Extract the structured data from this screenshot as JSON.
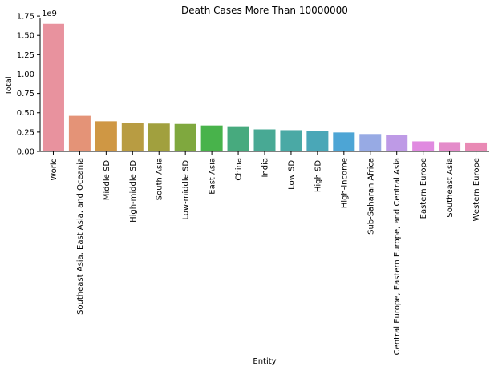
{
  "chart_data": {
    "type": "bar",
    "title": "Death Cases More Than 10000000",
    "xlabel": "Entity",
    "ylabel": "Total",
    "offset_label": "1e9",
    "ylim": [
      0,
      1.72
    ],
    "yticks": [
      0.0,
      0.25,
      0.5,
      0.75,
      1.0,
      1.25,
      1.5,
      1.75
    ],
    "ytick_labels": [
      "0.00",
      "0.25",
      "0.50",
      "0.75",
      "1.00",
      "1.25",
      "1.50",
      "1.75"
    ],
    "grid": false,
    "categories": [
      "World",
      "Southeast Asia, East Asia, and Oceania",
      "Middle SDI",
      "High-middle SDI",
      "South Asia",
      "Low-middle SDI",
      "East Asia",
      "China",
      "India",
      "Low SDI",
      "High SDI",
      "High-income",
      "Sub-Saharan Africa",
      "Central Europe, Eastern Europe, and Central Asia",
      "Eastern Europe",
      "Southeast Asia",
      "Western Europe"
    ],
    "values": [
      1.65,
      0.46,
      0.39,
      0.37,
      0.36,
      0.355,
      0.335,
      0.325,
      0.285,
      0.275,
      0.265,
      0.245,
      0.225,
      0.21,
      0.13,
      0.12,
      0.115
    ],
    "colors": [
      "#e8929e",
      "#e49377",
      "#cf9744",
      "#b89c42",
      "#a1a03e",
      "#7fa83e",
      "#48b34b",
      "#47aa7e",
      "#48a994",
      "#4aa9a5",
      "#4aa7b7",
      "#4da5d5",
      "#97aae4",
      "#be9ae6",
      "#e08ae0",
      "#e48cca",
      "#e98ab5"
    ]
  }
}
